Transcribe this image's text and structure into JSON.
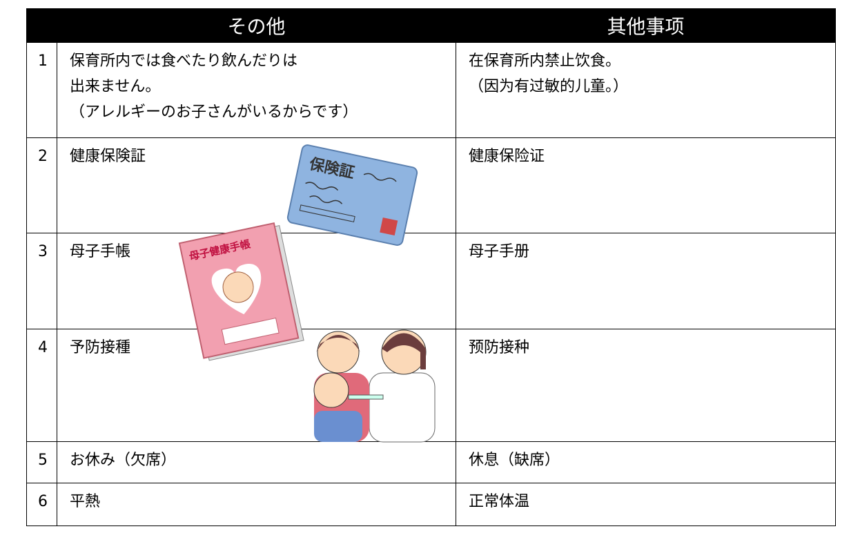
{
  "header": [
    "その他",
    "其他事项"
  ],
  "rows": [
    {
      "number": "1",
      "ja": [
        "保育所内では食べたり飲んだりは",
        "出来ません。",
        "（アレルギーのお子さんがいるからです）"
      ],
      "zh": [
        "在保育所内禁止饮食。",
        "（因为有过敏的儿童。）"
      ]
    },
    {
      "number": "2",
      "ja": [
        "健康保険証"
      ],
      "zh": [
        "健康保险证"
      ]
    },
    {
      "number": "3",
      "ja": [
        "母子手帳"
      ],
      "zh": [
        "母子手册"
      ]
    },
    {
      "number": "4",
      "ja": [
        "予防接種"
      ],
      "zh": [
        "预防接种"
      ]
    },
    {
      "number": "5",
      "ja": [
        "お休み（欠席）"
      ],
      "zh": [
        "休息（缺席）"
      ]
    },
    {
      "number": "6",
      "ja": [
        "平熱"
      ],
      "zh": [
        "正常体温"
      ]
    }
  ],
  "illustrations": [
    "保険証",
    "母子健康手帳"
  ]
}
